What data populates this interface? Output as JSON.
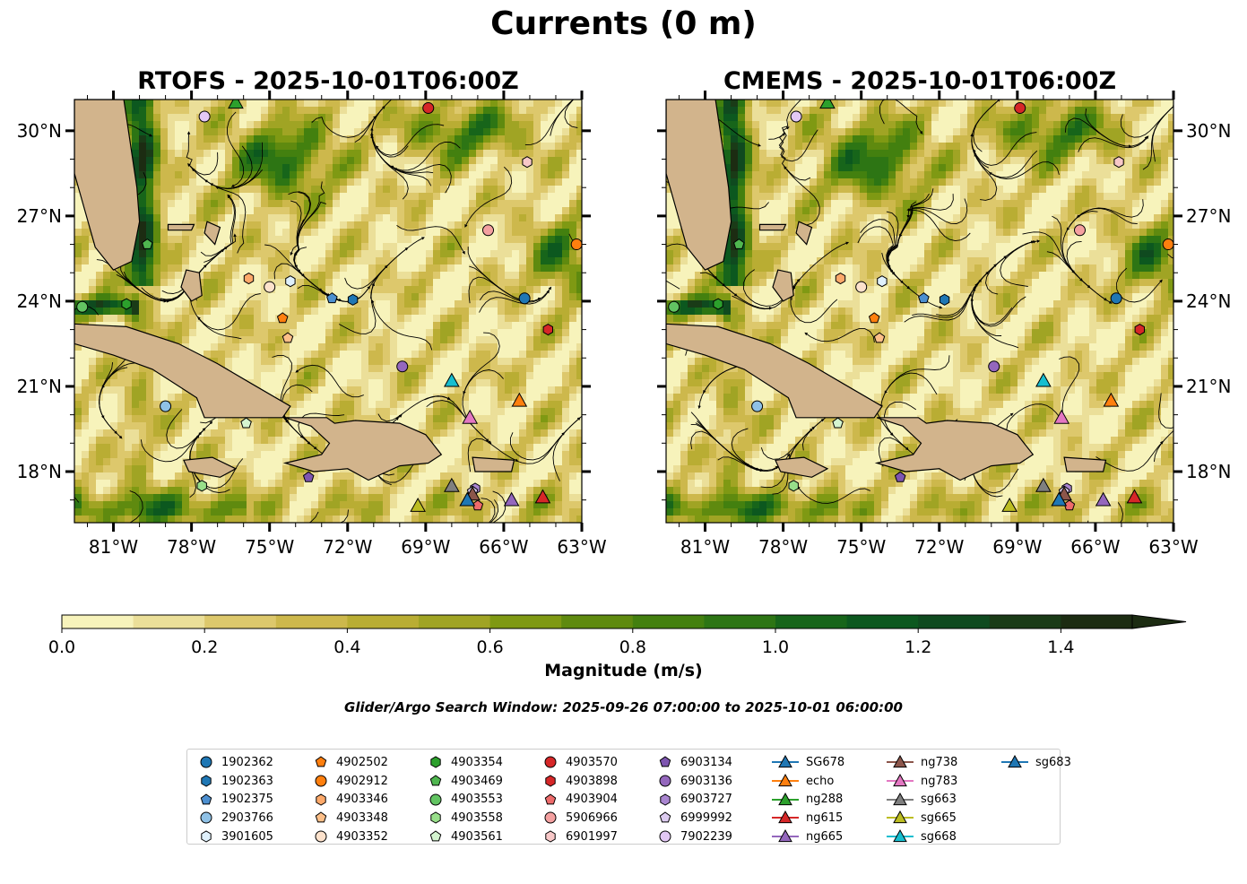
{
  "figure_title": "Currents (0 m)",
  "panels": [
    {
      "title": "RTOFS - 2025-10-01T06:00Z"
    },
    {
      "title": "CMEMS - 2025-10-01T06:00Z"
    }
  ],
  "colorbar": {
    "label": "Magnitude (m/s)",
    "ticks": [
      "0.0",
      "0.2",
      "0.4",
      "0.6",
      "0.8",
      "1.0",
      "1.2",
      "1.4"
    ],
    "colors": [
      "#f7f3bb",
      "#ebdf99",
      "#ddc86c",
      "#cdb84c",
      "#b9ad33",
      "#a0a424",
      "#7f9913",
      "#5f8a0f",
      "#43800f",
      "#2d7514",
      "#17651a",
      "#0c581f",
      "#0f4a1f",
      "#1a3b17",
      "#1c2c12"
    ],
    "extend": "max"
  },
  "search_window": "Glider/Argo Search Window: 2025-09-26 07:00:00 to 2025-10-01 06:00:00",
  "legend": [
    {
      "label": "1902362",
      "marker": "circle",
      "color": "#1f77b4"
    },
    {
      "label": "1902363",
      "marker": "hexagon",
      "color": "#1f77b4"
    },
    {
      "label": "1902375",
      "marker": "pentagon",
      "color": "#4c8fd0"
    },
    {
      "label": "2903766",
      "marker": "circle",
      "color": "#8fc1e6"
    },
    {
      "label": "3901605",
      "marker": "hexagon",
      "color": "#dff0fb"
    },
    {
      "label": "4902502",
      "marker": "pentagon",
      "color": "#ff7f0e"
    },
    {
      "label": "4902912",
      "marker": "circle",
      "color": "#ff7f0e"
    },
    {
      "label": "4903346",
      "marker": "hexagon",
      "color": "#fda96a"
    },
    {
      "label": "4903348",
      "marker": "pentagon",
      "color": "#fdbf88"
    },
    {
      "label": "4903352",
      "marker": "circle",
      "color": "#fde2cc"
    },
    {
      "label": "4903354",
      "marker": "hexagon",
      "color": "#2ca02c"
    },
    {
      "label": "4903469",
      "marker": "pentagon",
      "color": "#4fb64f"
    },
    {
      "label": "4903553",
      "marker": "circle",
      "color": "#62c462"
    },
    {
      "label": "4903558",
      "marker": "hexagon",
      "color": "#98df8a"
    },
    {
      "label": "4903561",
      "marker": "pentagon",
      "color": "#d5f5d0"
    },
    {
      "label": "4903570",
      "marker": "circle",
      "color": "#d62728"
    },
    {
      "label": "4903898",
      "marker": "hexagon",
      "color": "#d62728"
    },
    {
      "label": "4903904",
      "marker": "pentagon",
      "color": "#ee6b6b"
    },
    {
      "label": "5906966",
      "marker": "circle",
      "color": "#f4a0a0"
    },
    {
      "label": "6901997",
      "marker": "hexagon",
      "color": "#f8c8c8"
    },
    {
      "label": "6903134",
      "marker": "pentagon",
      "color": "#7e55b0"
    },
    {
      "label": "6903136",
      "marker": "circle",
      "color": "#9467bd"
    },
    {
      "label": "6903727",
      "marker": "hexagon",
      "color": "#a985d0"
    },
    {
      "label": "6999992",
      "marker": "pentagon",
      "color": "#dccbf0"
    },
    {
      "label": "7902239",
      "marker": "circle",
      "color": "#e3c8f5"
    },
    {
      "label": "SG678",
      "marker": "triangle",
      "color": "#1f77b4",
      "line": true
    },
    {
      "label": "echo",
      "marker": "triangle",
      "color": "#ff7f0e",
      "line": true
    },
    {
      "label": "ng288",
      "marker": "triangle",
      "color": "#2ca02c",
      "line": true
    },
    {
      "label": "ng615",
      "marker": "triangle",
      "color": "#d62728",
      "line": true
    },
    {
      "label": "ng665",
      "marker": "triangle",
      "color": "#9467bd",
      "line": true
    },
    {
      "label": "ng738",
      "marker": "triangle",
      "color": "#8c564b",
      "line": true
    },
    {
      "label": "ng783",
      "marker": "triangle",
      "color": "#e377c2",
      "line": true
    },
    {
      "label": "sg663",
      "marker": "triangle",
      "color": "#7f7f7f",
      "line": true
    },
    {
      "label": "sg665",
      "marker": "triangle",
      "color": "#bcbd22",
      "line": true
    },
    {
      "label": "sg668",
      "marker": "triangle",
      "color": "#17becf",
      "line": true
    },
    {
      "label": "sg683",
      "marker": "triangle",
      "color": "#1f77b4",
      "line": true
    }
  ],
  "chart_data": {
    "type": "heatmap",
    "description_of_layers": "ocean surface current magnitude with streamlines, land masks, float and glider positions",
    "x_axis": {
      "ticks": [
        -81,
        -78,
        -75,
        -72,
        -69,
        -66,
        -63
      ],
      "tick_labels": [
        "81°W",
        "78°W",
        "75°W",
        "72°W",
        "69°W",
        "66°W",
        "63°W"
      ],
      "xlim": [
        -82.5,
        -63
      ]
    },
    "y_axis": {
      "ticks": [
        18,
        21,
        24,
        27,
        30
      ],
      "tick_labels": [
        "18°N",
        "21°N",
        "24°N",
        "27°N",
        "30°N"
      ],
      "ylim": [
        16.2,
        31.1
      ]
    },
    "value_range": [
      0,
      1.5
    ],
    "units": "m/s",
    "platforms": [
      {
        "id": "1902362",
        "lon": -65.2,
        "lat": 24.1
      },
      {
        "id": "1902363",
        "lon": -71.8,
        "lat": 24.05
      },
      {
        "id": "1902375",
        "lon": -72.6,
        "lat": 24.1
      },
      {
        "id": "2903766",
        "lon": -79.0,
        "lat": 20.3
      },
      {
        "id": "3901605",
        "lon": -74.2,
        "lat": 24.7
      },
      {
        "id": "4902502",
        "lon": -74.5,
        "lat": 23.4
      },
      {
        "id": "4902912",
        "lon": -63.2,
        "lat": 26.0
      },
      {
        "id": "4903346",
        "lon": -75.8,
        "lat": 24.8
      },
      {
        "id": "4903348",
        "lon": -74.3,
        "lat": 22.7
      },
      {
        "id": "4903352",
        "lon": -75.0,
        "lat": 24.5
      },
      {
        "id": "4903354",
        "lon": -80.5,
        "lat": 23.9
      },
      {
        "id": "4903469",
        "lon": -79.7,
        "lat": 26.0
      },
      {
        "id": "4903553",
        "lon": -82.2,
        "lat": 23.8
      },
      {
        "id": "4903558",
        "lon": -77.6,
        "lat": 17.5
      },
      {
        "id": "4903561",
        "lon": -75.9,
        "lat": 19.7
      },
      {
        "id": "4903570",
        "lon": -68.9,
        "lat": 30.8
      },
      {
        "id": "4903898",
        "lon": -64.3,
        "lat": 23.0
      },
      {
        "id": "4903904",
        "lon": -67.0,
        "lat": 16.8
      },
      {
        "id": "5906966",
        "lon": -66.6,
        "lat": 26.5
      },
      {
        "id": "6901997",
        "lon": -65.1,
        "lat": 28.9
      },
      {
        "id": "6903134",
        "lon": -73.5,
        "lat": 17.8
      },
      {
        "id": "6903136",
        "lon": -69.9,
        "lat": 21.7
      },
      {
        "id": "6903727",
        "lon": -67.1,
        "lat": 17.4
      },
      {
        "id": "6999992",
        "lon": -67.2,
        "lat": 17.3
      },
      {
        "id": "7902239",
        "lon": -77.5,
        "lat": 30.5
      },
      {
        "id": "SG678",
        "lon": -67.4,
        "lat": 17.0
      },
      {
        "id": "echo",
        "lon": -65.4,
        "lat": 20.5
      },
      {
        "id": "ng288",
        "lon": -76.3,
        "lat": 31.0
      },
      {
        "id": "ng615",
        "lon": -64.5,
        "lat": 17.1
      },
      {
        "id": "ng665",
        "lon": -65.7,
        "lat": 17.0
      },
      {
        "id": "ng738",
        "lon": -67.2,
        "lat": 17.2
      },
      {
        "id": "ng783",
        "lon": -67.3,
        "lat": 19.9
      },
      {
        "id": "sg663",
        "lon": -68.0,
        "lat": 17.5
      },
      {
        "id": "sg665",
        "lon": -69.3,
        "lat": 16.8
      },
      {
        "id": "sg668",
        "lon": -68.0,
        "lat": 21.2
      },
      {
        "id": "sg683",
        "lon": -67.4,
        "lat": 17.0
      }
    ]
  }
}
